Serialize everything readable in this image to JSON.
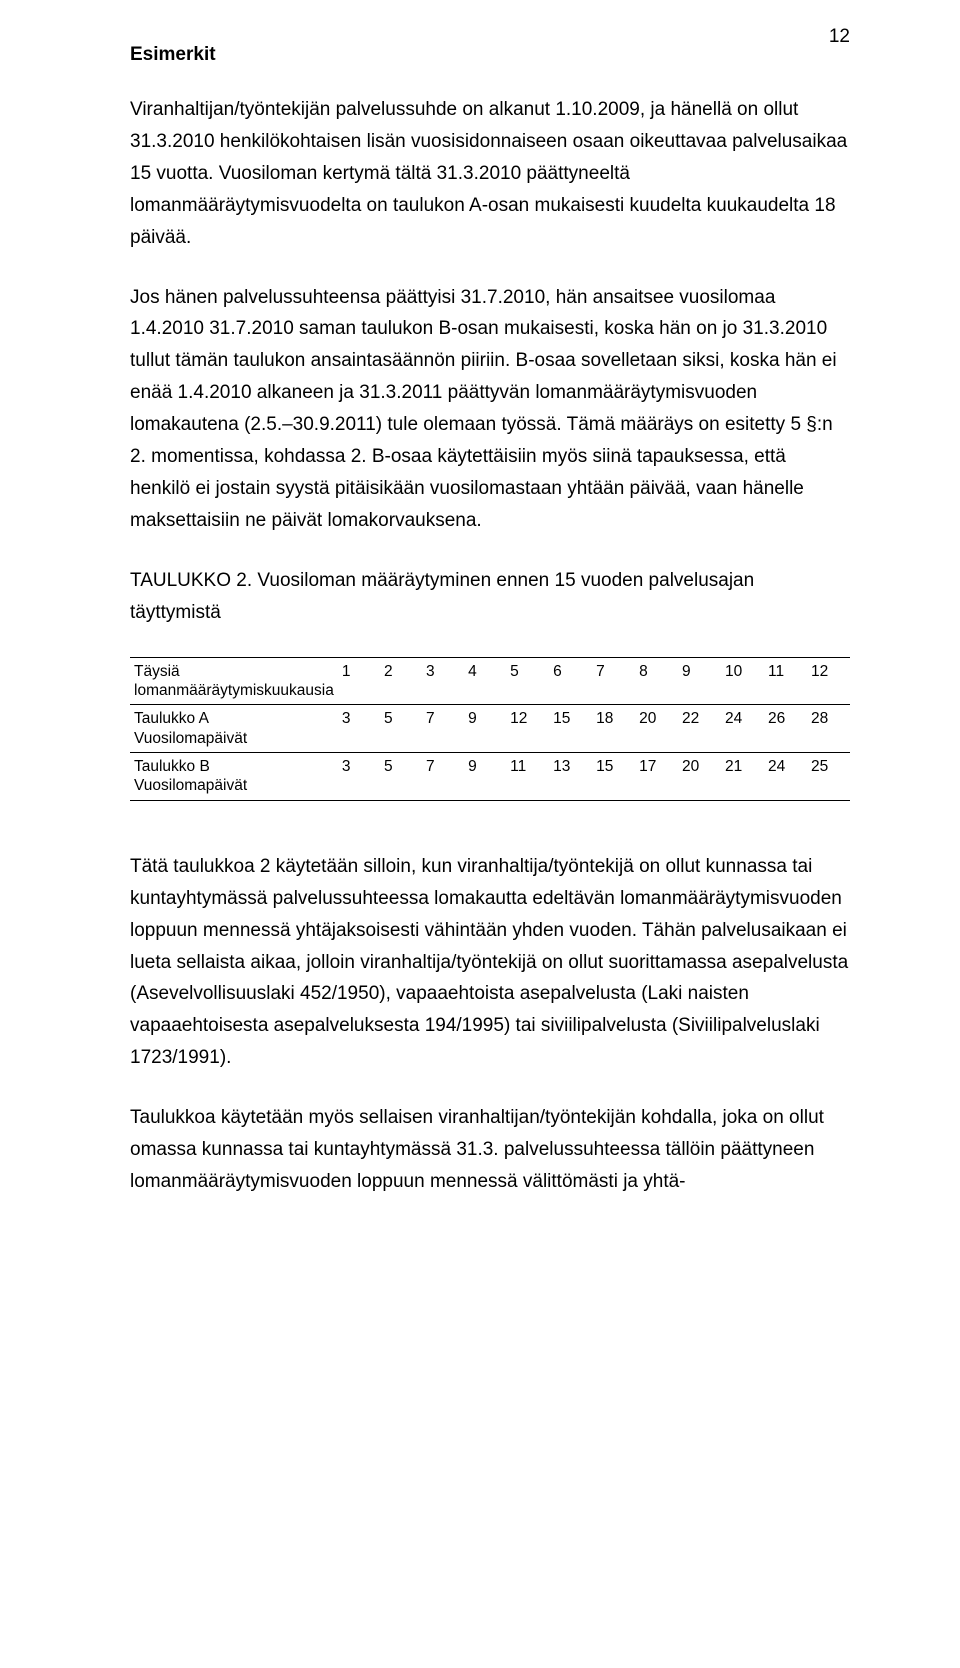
{
  "page_number": "12",
  "heading": "Esimerkit",
  "paragraphs": {
    "p1": "Viranhaltijan/työntekijän palvelussuhde on alkanut 1.10.2009, ja hänellä on ollut 31.3.2010 henkilökohtaisen lisän vuosisidonnaiseen osaan oikeuttavaa palvelusaikaa 15 vuotta. Vuosiloman kertymä tältä 31.3.2010 päättyneeltä lomanmääräytymisvuodelta on taulukon A-osan mukaisesti kuudelta kuukaudelta 18 päivää.",
    "p2": "Jos hänen palvelussuhteensa päättyisi 31.7.2010, hän ansaitsee vuosilomaa 1.4.2010 31.7.2010 saman taulukon B-osan mukaisesti, koska hän on jo 31.3.2010 tullut tämän taulukon ansaintasäännön piiriin. B-osaa sovelletaan siksi, koska hän ei enää 1.4.2010 alkaneen ja 31.3.2011 päättyvän lomanmääräytymisvuoden lomakautena (2.5.–30.9.2011) tule olemaan työssä. Tämä määräys on esitetty 5 §:n 2. momentissa, kohdassa 2. B-osaa käytettäisiin myös siinä tapauksessa, että henkilö ei jostain syystä pitäisikään vuosilomastaan yhtään päivää, vaan hänelle maksettaisiin ne päivät lomakorvauksena.",
    "p3": "Tätä taulukkoa 2 käytetään silloin, kun viranhaltija/työntekijä on ollut kunnassa tai kuntayhtymässä palvelussuhteessa lomakautta edeltävän lomanmääräytymisvuoden loppuun mennessä yhtäjaksoisesti vähintään yhden vuoden. Tähän palvelusaikaan ei lueta sellaista aikaa, jolloin viranhaltija/työntekijä on ollut suorittamassa asepalvelusta (Asevelvollisuuslaki 452/1950), vapaaehtoista asepalvelusta (Laki naisten vapaaehtoisesta asepalveluksesta 194/1995) tai siviilipalvelusta (Siviilipalveluslaki 1723/1991).",
    "p4": "Taulukkoa käytetään myös sellaisen viranhaltijan/työntekijän kohdalla, joka on ollut omassa kunnassa tai kuntayhtymässä 31.3. palvelussuhteessa tällöin päättyneen lomanmääräytymisvuoden loppuun mennessä välittömästi ja yhtä-"
  },
  "table_title": "TAULUKKO 2. Vuosiloman määräytyminen ennen 15 vuoden palvelusajan täyttymistä",
  "table": {
    "row1_label": "Täysiä lomanmääräytymiskuukausia",
    "row1": [
      "1",
      "2",
      "3",
      "4",
      "5",
      "6",
      "7",
      "8",
      "9",
      "10",
      "11",
      "12"
    ],
    "row2_label_a": "Taulukko A",
    "row2_label_b": "Vuosilomapäivät",
    "row2": [
      "3",
      "5",
      "7",
      "9",
      "12",
      "15",
      "18",
      "20",
      "22",
      "24",
      "26",
      "28"
    ],
    "row3_label_a": "Taulukko B",
    "row3_label_b": "Vuosilomapäivät",
    "row3": [
      "3",
      "5",
      "7",
      "9",
      "11",
      "13",
      "15",
      "17",
      "20",
      "21",
      "24",
      "25"
    ]
  }
}
